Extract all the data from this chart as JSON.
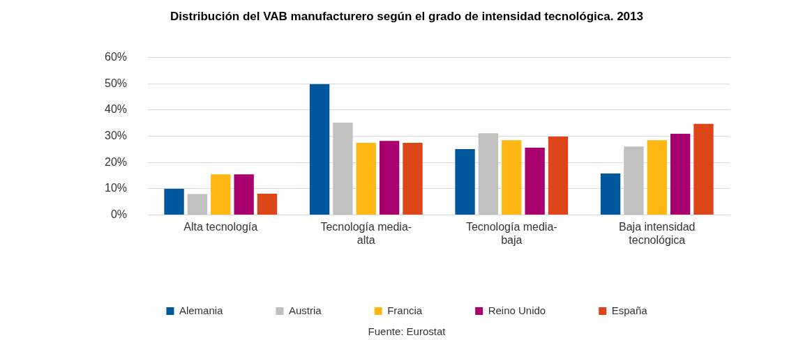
{
  "chart_data": {
    "type": "bar",
    "title": "Distribución del VAB manufacturero según el grado de intensidad tecnológica. 2013",
    "categories": [
      "Alta tecnología",
      "Tecnología media-alta",
      "Tecnología media-baja",
      "Baja intensidad tecnológica"
    ],
    "series": [
      {
        "name": "Alemania",
        "color": "#00579c",
        "values": [
          10,
          49.8,
          25.1,
          15.8
        ]
      },
      {
        "name": "Austria",
        "color": "#c0c0c0",
        "values": [
          8,
          35.2,
          31.1,
          26.1
        ]
      },
      {
        "name": "Francia",
        "color": "#ffb713",
        "values": [
          15.5,
          27.5,
          28.5,
          28.5
        ]
      },
      {
        "name": "Reino Unido",
        "color": "#a8006e",
        "values": [
          15.5,
          28.2,
          25.6,
          30.9
        ]
      },
      {
        "name": "España",
        "color": "#dc4618",
        "values": [
          8.1,
          27.5,
          29.9,
          34.7
        ]
      }
    ],
    "ylim": [
      0,
      60
    ],
    "yticks": [
      {
        "value": 0,
        "label": "0%"
      },
      {
        "value": 10,
        "label": "10%"
      },
      {
        "value": 20,
        "label": "20%"
      },
      {
        "value": 30,
        "label": "30%"
      },
      {
        "value": 40,
        "label": "40%"
      },
      {
        "value": 50,
        "label": "50%"
      },
      {
        "value": 60,
        "label": "60%"
      }
    ],
    "grid": "y",
    "legend": "bottom",
    "annotations": [
      "Fuente: Eurostat"
    ]
  }
}
